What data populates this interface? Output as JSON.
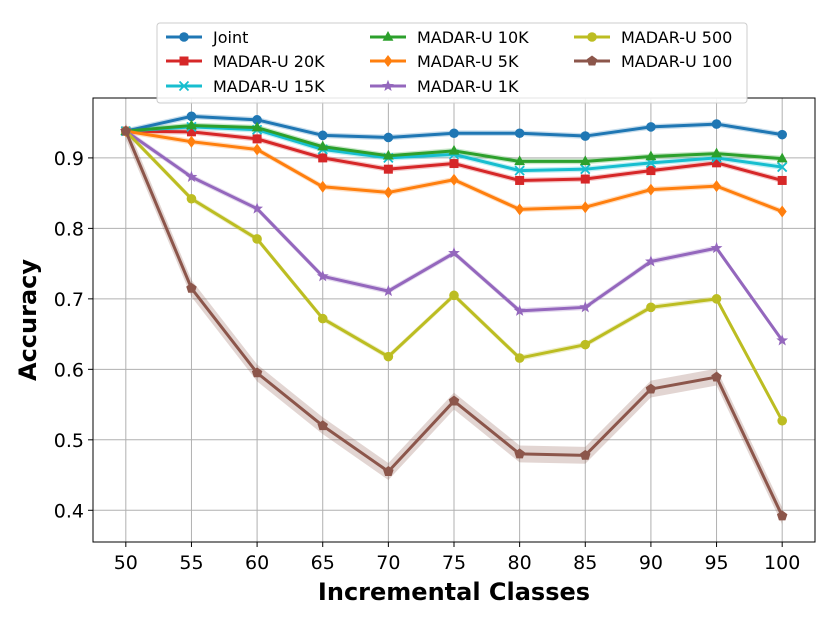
{
  "chart_data": {
    "type": "line",
    "xlabel": "Incremental Classes",
    "ylabel": "Accuracy",
    "x": [
      50,
      55,
      60,
      65,
      70,
      75,
      80,
      85,
      90,
      95,
      100
    ],
    "xticks": [
      "50",
      "55",
      "60",
      "65",
      "70",
      "75",
      "80",
      "85",
      "90",
      "95",
      "100"
    ],
    "yticks": [
      "0.4",
      "0.5",
      "0.6",
      "0.7",
      "0.8",
      "0.9"
    ],
    "ylim": [
      0.355,
      0.985
    ],
    "grid": true,
    "legend_position": "top-center",
    "series": [
      {
        "name": "Joint",
        "color": "#1f77b4",
        "marker": "circle",
        "values": [
          0.938,
          0.959,
          0.954,
          0.932,
          0.929,
          0.935,
          0.935,
          0.931,
          0.944,
          0.948,
          0.933
        ]
      },
      {
        "name": "MADAR-U 20K",
        "color": "#d62728",
        "marker": "square",
        "values": [
          0.938,
          0.937,
          0.927,
          0.9,
          0.884,
          0.892,
          0.868,
          0.87,
          0.882,
          0.893,
          0.868
        ]
      },
      {
        "name": "MADAR-U 15K",
        "color": "#17becf",
        "marker": "x",
        "values": [
          0.938,
          0.944,
          0.94,
          0.912,
          0.9,
          0.905,
          0.882,
          0.884,
          0.893,
          0.9,
          0.887
        ]
      },
      {
        "name": "MADAR-U 10K",
        "color": "#2ca02c",
        "marker": "triangle",
        "values": [
          0.938,
          0.946,
          0.943,
          0.916,
          0.903,
          0.91,
          0.895,
          0.895,
          0.902,
          0.906,
          0.899
        ]
      },
      {
        "name": "MADAR-U 5K",
        "color": "#ff7f0e",
        "marker": "diamond",
        "values": [
          0.938,
          0.923,
          0.912,
          0.859,
          0.851,
          0.869,
          0.827,
          0.83,
          0.855,
          0.86,
          0.824
        ]
      },
      {
        "name": "MADAR-U 1K",
        "color": "#9467bd",
        "marker": "star",
        "values": [
          0.938,
          0.873,
          0.828,
          0.732,
          0.711,
          0.765,
          0.683,
          0.688,
          0.753,
          0.772,
          0.641
        ]
      },
      {
        "name": "MADAR-U 500",
        "color": "#bcbd22",
        "marker": "circle",
        "values": [
          0.938,
          0.842,
          0.785,
          0.672,
          0.618,
          0.705,
          0.616,
          0.635,
          0.688,
          0.7,
          0.527
        ]
      },
      {
        "name": "MADAR-U 100",
        "color": "#8c564b",
        "marker": "pentagon",
        "values": [
          0.938,
          0.715,
          0.595,
          0.52,
          0.455,
          0.555,
          0.48,
          0.478,
          0.572,
          0.589,
          0.392
        ]
      }
    ]
  }
}
